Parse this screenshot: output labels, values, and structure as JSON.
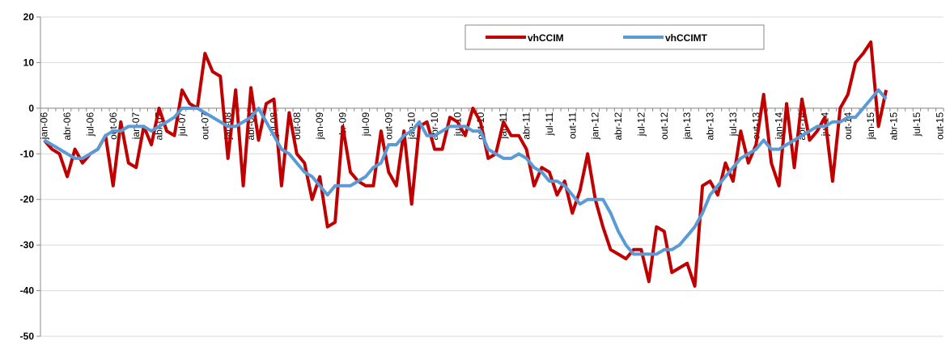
{
  "chart_data": {
    "type": "line",
    "categories": [
      "jan-06",
      null,
      null,
      "abr-06",
      null,
      null,
      "jul-06",
      null,
      null,
      "out-06",
      null,
      null,
      "jan-07",
      null,
      null,
      "abr-07",
      null,
      null,
      "jul-07",
      null,
      null,
      "out-07",
      null,
      null,
      "jan-08",
      null,
      null,
      "abr-08",
      null,
      null,
      "jul-08",
      null,
      null,
      "out-08",
      null,
      null,
      "jan-09",
      null,
      null,
      "abr-09",
      null,
      null,
      "jul-09",
      null,
      null,
      "out-09",
      null,
      null,
      "jan-10",
      null,
      null,
      "abr-10",
      null,
      null,
      "jul-10",
      null,
      null,
      "out-10",
      null,
      null,
      "jan-11",
      null,
      null,
      "abr-11",
      null,
      null,
      "jul-11",
      null,
      null,
      "out-11",
      null,
      null,
      "jan-12",
      null,
      null,
      "abr-12",
      null,
      null,
      "jul-12",
      null,
      null,
      "out-12",
      null,
      null,
      "jan-13",
      null,
      null,
      "abr-13",
      null,
      null,
      "jul-13",
      null,
      null,
      "out-13",
      null,
      null,
      "jan-14",
      null,
      null,
      "abr-14",
      null,
      null,
      "jul-14",
      null,
      null,
      "out-14",
      null,
      null,
      "jan-15",
      null,
      null,
      "abr-15",
      null,
      null,
      "jul-15",
      null,
      null,
      "out-15"
    ],
    "series": [
      {
        "name": "vhCCIM",
        "color": "#c00000",
        "values": [
          -7,
          -9,
          -10,
          -15,
          -9,
          -12,
          -10,
          -9,
          -6,
          -17,
          -3,
          -12,
          -13,
          -4,
          -8,
          0,
          -5,
          -6,
          4,
          1,
          0,
          12,
          8,
          7,
          -11,
          4,
          -17,
          4.5,
          -7,
          1,
          2,
          -17,
          -1,
          -10,
          -12,
          -20,
          -15,
          -26,
          -25,
          -4,
          -14,
          -16,
          -17,
          -17,
          -5,
          -14,
          -17,
          -5,
          -21,
          -4,
          -3,
          -9,
          -9,
          -2,
          -3,
          -6,
          0,
          -3,
          -11,
          -10,
          -3,
          -6,
          -6,
          -9,
          -17,
          -13,
          -14,
          -19,
          -16,
          -23,
          -18,
          -10,
          -20,
          -26,
          -31,
          -32,
          -33,
          -31,
          -31,
          -38,
          -26,
          -27,
          -36,
          -35,
          -34,
          -39,
          -17,
          -16,
          -19,
          -12,
          -16,
          -5,
          -12,
          -8,
          3,
          -12,
          -17,
          1,
          -13,
          2,
          -7,
          -5,
          -2,
          -16,
          0,
          3,
          10,
          12,
          14.5,
          -4,
          4,
          null,
          null,
          null,
          null,
          null,
          null,
          null
        ]
      },
      {
        "name": "vhCCIMT",
        "color": "#5b9bd5",
        "values": [
          -7,
          -8,
          -9,
          -10,
          -11,
          -11,
          -10,
          -9,
          -6,
          -5,
          -5,
          -4,
          -4,
          -4,
          -5,
          -4,
          -3,
          -2,
          0,
          0,
          0,
          -1,
          -2,
          -3,
          -4,
          -4,
          -3,
          -2,
          0,
          -3,
          -6,
          -9,
          -10,
          -12,
          -14,
          -15,
          -17,
          -19,
          -17,
          -17,
          -17,
          -16,
          -15,
          -13,
          -12,
          -8,
          -8,
          -6,
          -5,
          -3,
          -6,
          -6,
          -5,
          -4,
          -4,
          -4,
          -5,
          -5,
          -9,
          -10,
          -11,
          -11,
          -10,
          -11,
          -13,
          -14,
          -16,
          -16,
          -17,
          -19,
          -21,
          -20,
          -20,
          -20,
          -23,
          -27,
          -30,
          -32,
          -32,
          -32,
          -32,
          -31,
          -31,
          -30,
          -28,
          -26,
          -23,
          -19,
          -17,
          -15,
          -13,
          -11,
          -10,
          -9,
          -7,
          -9,
          -9,
          -8,
          -7,
          -6,
          -5,
          -4,
          -4,
          -3,
          -3,
          -2,
          -2,
          0,
          2,
          4,
          2,
          null,
          null,
          null,
          null,
          null,
          null,
          null
        ]
      }
    ],
    "ylim": [
      -50,
      20
    ],
    "yticks": [
      -50,
      -40,
      -30,
      -20,
      -10,
      0,
      10,
      20
    ],
    "grid": true,
    "legend": "top"
  }
}
